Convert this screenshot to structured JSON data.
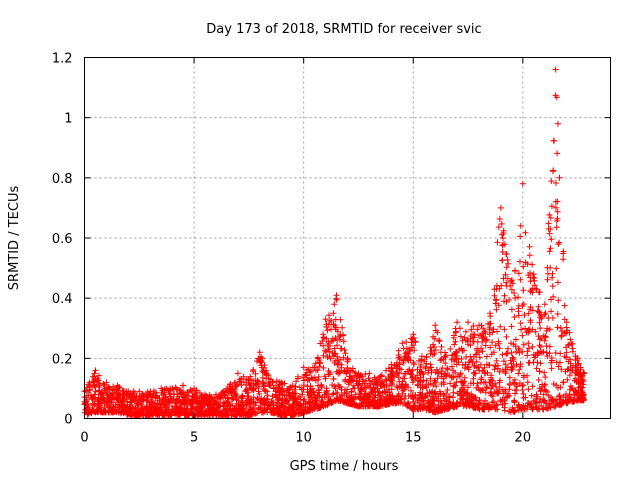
{
  "chart_data": {
    "type": "scatter",
    "title": "Day 173 of 2018, SRMTID for receiver svic",
    "xlabel": "GPS time / hours",
    "ylabel": "SRMTID / TECUs",
    "xlim": [
      0,
      24
    ],
    "ylim": [
      0,
      1.2
    ],
    "xticks": [
      {
        "value": 0,
        "label": "0"
      },
      {
        "value": 5,
        "label": "5"
      },
      {
        "value": 10,
        "label": "10"
      },
      {
        "value": 15,
        "label": "15"
      },
      {
        "value": 20,
        "label": "20"
      }
    ],
    "yticks": [
      {
        "value": 0,
        "label": "0"
      },
      {
        "value": 0.2,
        "label": "0.2"
      },
      {
        "value": 0.4,
        "label": "0.4"
      },
      {
        "value": 0.6,
        "label": "0.6"
      },
      {
        "value": 0.8,
        "label": "0.8"
      },
      {
        "value": 1.0,
        "label": "1"
      },
      {
        "value": 1.2,
        "label": "1.2"
      }
    ],
    "grid": true,
    "legend": "none",
    "marker": "+",
    "marker_color": "#ff0000",
    "x_range_observed": [
      0,
      22.8
    ],
    "series": [
      {
        "name": "SRMTID",
        "envelope": {
          "x": [
            0,
            0.5,
            1,
            1.5,
            2,
            2.5,
            3,
            3.5,
            4,
            4.5,
            5,
            5.5,
            6,
            6.5,
            7,
            7.5,
            8,
            8.5,
            9,
            9.5,
            10,
            10.5,
            11,
            11.5,
            12,
            12.5,
            13,
            13.5,
            14,
            14.5,
            15,
            15.5,
            16,
            16.5,
            17,
            17.5,
            18,
            18.5,
            19,
            19.5,
            20,
            20.5,
            21,
            21.5,
            22,
            22.5,
            22.8
          ],
          "low": [
            0.01,
            0.02,
            0.02,
            0.02,
            0.01,
            0.01,
            0.01,
            0.01,
            0.01,
            0.01,
            0.01,
            0.01,
            0.01,
            0.01,
            0.01,
            0.01,
            0.02,
            0.02,
            0.01,
            0.01,
            0.02,
            0.03,
            0.04,
            0.06,
            0.05,
            0.04,
            0.04,
            0.04,
            0.05,
            0.05,
            0.03,
            0.03,
            0.02,
            0.03,
            0.04,
            0.04,
            0.03,
            0.03,
            0.03,
            0.02,
            0.03,
            0.03,
            0.03,
            0.04,
            0.05,
            0.06,
            0.06
          ],
          "high": [
            0.09,
            0.16,
            0.12,
            0.11,
            0.09,
            0.09,
            0.09,
            0.1,
            0.1,
            0.11,
            0.1,
            0.08,
            0.08,
            0.1,
            0.15,
            0.13,
            0.22,
            0.13,
            0.12,
            0.11,
            0.17,
            0.17,
            0.33,
            0.41,
            0.2,
            0.15,
            0.15,
            0.14,
            0.18,
            0.25,
            0.28,
            0.19,
            0.31,
            0.21,
            0.32,
            0.32,
            0.31,
            0.35,
            0.7,
            0.46,
            0.78,
            0.48,
            0.38,
            1.16,
            0.32,
            0.2,
            0.15
          ]
        }
      }
    ]
  }
}
